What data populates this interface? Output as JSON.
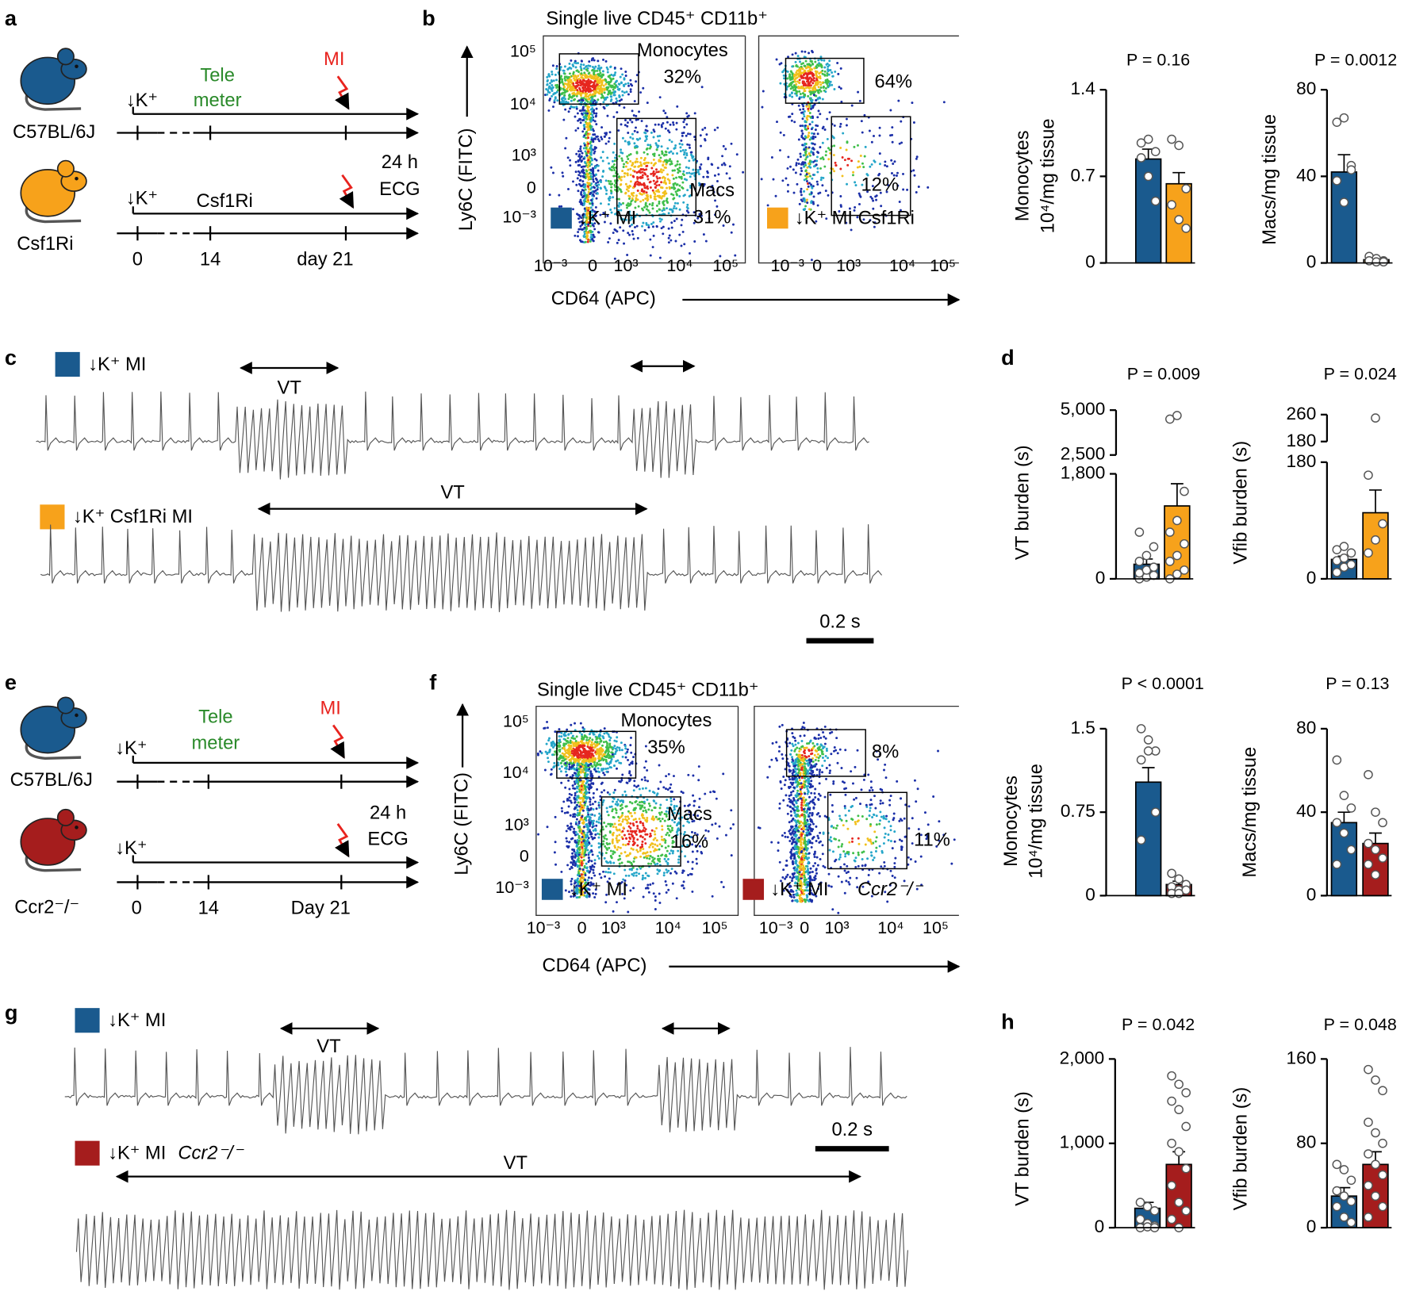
{
  "figure": {
    "a": {
      "label": "a",
      "mouse1": "C57BL/6J",
      "mouse2": "Csf1Ri",
      "k1": "↓K⁺",
      "tele": "Tele",
      "meter": "meter",
      "mi": "MI",
      "k2": "↓K⁺",
      "csf": "Csf1Ri",
      "ecg1": "24 h",
      "ecg2": "ECG",
      "t0": "0",
      "t14": "14",
      "t21": "day 21"
    },
    "b": {
      "label": "b",
      "title": "Single live CD45⁺ CD11b⁺",
      "ylabel": "Ly6C (FITC)",
      "xlabel": "CD64 (APC)",
      "yticks": [
        "10⁵",
        "10⁴",
        "10³",
        "0",
        "10⁻³"
      ],
      "xticks": [
        "10⁻³",
        "0",
        "10³",
        "10⁴",
        "10⁵"
      ],
      "xticks_right": [
        "10⁻³",
        "0",
        "10³",
        "10⁴",
        "10⁵"
      ],
      "mono": "Monocytes",
      "p1": "32%",
      "macs": "Macs",
      "p2": "31%",
      "p3": "64%",
      "p4": "12%",
      "legend1": "↓K⁺ MI",
      "legend2": "↓K⁺ MI Csf1Ri"
    },
    "c": {
      "label": "c",
      "legend1": "↓K⁺ MI",
      "vt1": "VT",
      "legend2": "↓K⁺ Csf1Ri MI",
      "vt2": "VT",
      "scale": "0.2 s"
    },
    "d": {
      "label": "d"
    },
    "e": {
      "label": "e",
      "mouse1": "C57BL/6J",
      "mouse2": "Ccr2⁻/⁻",
      "k1": "↓K⁺",
      "tele": "Tele",
      "meter": "meter",
      "mi": "MI",
      "k2": "↓K⁺",
      "ecg1": "24 h",
      "ecg2": "ECG",
      "t0": "0",
      "t14": "14",
      "t21": "Day 21"
    },
    "f": {
      "label": "f",
      "title": "Single live CD45⁺ CD11b⁺",
      "ylabel": "Ly6C (FITC)",
      "xlabel": "CD64 (APC)",
      "yticks": [
        "10⁵",
        "10⁴",
        "10³",
        "0",
        "10⁻³"
      ],
      "xticks": [
        "10⁻³",
        "0",
        "10³",
        "10⁴",
        "10⁵"
      ],
      "xticks_right": [
        "10⁻³",
        "0",
        "10³",
        "10⁴",
        "10⁵"
      ],
      "mono": "Monocytes",
      "p1": "35%",
      "macs": "Macs",
      "p2": "16%",
      "p3": "8%",
      "p4": "11%",
      "legend1": "↓K⁺ MI",
      "legend2": "↓K⁺ MI",
      "legend2_italic": "Ccr2⁻/⁻"
    },
    "g": {
      "label": "g",
      "legend1": "↓K⁺ MI",
      "vt1": "VT",
      "legend2": "↓K⁺ MI",
      "legend2_italic": "Ccr2⁻/⁻",
      "vt2": "VT",
      "scale": "0.2 s"
    },
    "h": {
      "label": "h"
    }
  },
  "chart_data": [
    {
      "type": "bar",
      "title": "P = 0.16",
      "ylabel": [
        "Monocytes",
        "10⁴/mg tissue"
      ],
      "categories": [
        null,
        null
      ],
      "colors": [
        "#1a5a8e",
        "#f7a21b"
      ],
      "values": [
        0.84,
        0.64
      ],
      "errors": [
        0.08,
        0.09
      ],
      "points": [
        [
          0.97,
          1.0,
          0.9,
          0.85,
          0.7,
          0.5
        ],
        [
          1.0,
          0.95,
          0.6,
          0.47,
          0.35,
          0.28
        ]
      ],
      "ylim": [
        0,
        1.4
      ],
      "yticks": [
        0,
        0.7,
        1.4
      ]
    },
    {
      "type": "bar",
      "title": "P = 0.0012",
      "ylabel": [
        "Macs/mg tissue"
      ],
      "categories": [
        null,
        null
      ],
      "colors": [
        "#1a5a8e",
        "#f7a21b"
      ],
      "values": [
        42,
        1.5
      ],
      "errors": [
        8,
        0.5
      ],
      "points": [
        [
          65,
          67,
          45,
          38,
          28,
          43
        ],
        [
          3,
          2,
          1,
          1,
          0.5,
          0.5
        ]
      ],
      "ylim": [
        0,
        80
      ],
      "yticks": [
        0,
        40,
        80
      ]
    },
    {
      "type": "bar",
      "title": "P = 0.009",
      "ylabel": [
        "VT burden (s)"
      ],
      "categories": [
        null,
        null
      ],
      "colors": [
        "#1a5a8e",
        "#f7a21b"
      ],
      "values": [
        250,
        1250
      ],
      "errors": [
        90,
        380
      ],
      "points": [
        [
          0,
          30,
          60,
          100,
          150,
          200,
          300,
          400,
          550,
          800
        ],
        [
          0,
          80,
          150,
          300,
          400,
          600,
          800,
          1000,
          1500,
          4500,
          4700
        ]
      ],
      "ylim": [
        0,
        1800
      ],
      "yticks": [
        0,
        {
          "value": 1800,
          "label": "1,800"
        }
      ],
      "ylim_upper": [
        2500,
        5000
      ],
      "yticks_upper": [
        {
          "value": 2500,
          "label": "2,500"
        },
        {
          "value": 5000,
          "label": "5,000"
        }
      ]
    },
    {
      "type": "bar",
      "title": "P = 0.024",
      "ylabel": [
        "Vfib burden (s)"
      ],
      "categories": [
        null,
        null
      ],
      "colors": [
        "#1a5a8e",
        "#f7a21b"
      ],
      "values": [
        30,
        102
      ],
      "errors": [
        5,
        35
      ],
      "points": [
        [
          10,
          18,
          22,
          28,
          32,
          40,
          45,
          50
        ],
        [
          40,
          60,
          85,
          160,
          250
        ]
      ],
      "ylim": [
        0,
        180
      ],
      "yticks": [
        0,
        180
      ],
      "ylim_upper": [
        180,
        260
      ],
      "yticks_upper": [
        180,
        260
      ]
    },
    {
      "type": "bar",
      "title": "P < 0.0001",
      "ylabel": [
        "Monocytes",
        "10⁴/mg tissue"
      ],
      "categories": [
        null,
        null
      ],
      "colors": [
        "#1a5a8e",
        "#a51d1d"
      ],
      "values": [
        1.02,
        0.1
      ],
      "errors": [
        0.13,
        0.03
      ],
      "points": [
        [
          1.5,
          1.4,
          1.3,
          1.22,
          1.3,
          0.75,
          0.5
        ],
        [
          0.2,
          0.15,
          0.1,
          0.08,
          0.05,
          0.05,
          0.02,
          0.02
        ]
      ],
      "ylim": [
        0,
        1.5
      ],
      "yticks": [
        0,
        0.75,
        1.5
      ]
    },
    {
      "type": "bar",
      "title": "P = 0.13",
      "ylabel": [
        "Macs/mg tissue"
      ],
      "categories": [
        null,
        null
      ],
      "colors": [
        "#1a5a8e",
        "#a51d1d"
      ],
      "values": [
        35,
        25
      ],
      "errors": [
        5,
        5
      ],
      "points": [
        [
          65,
          48,
          42,
          35,
          30,
          22,
          15
        ],
        [
          58,
          40,
          35,
          25,
          22,
          18,
          15,
          10
        ]
      ],
      "ylim": [
        0,
        80
      ],
      "yticks": [
        0,
        40,
        80
      ]
    },
    {
      "type": "bar",
      "title": "P = 0.042",
      "ylabel": [
        "VT burden (s)"
      ],
      "categories": [
        null,
        null
      ],
      "colors": [
        "#1a5a8e",
        "#a51d1d"
      ],
      "values": [
        230,
        750
      ],
      "errors": [
        70,
        150
      ],
      "points": [
        [
          300,
          250,
          200,
          100,
          50,
          20,
          0,
          10,
          0
        ],
        [
          1800,
          1700,
          1600,
          1500,
          1400,
          1200,
          1000,
          900,
          700,
          500,
          300,
          200,
          100,
          0
        ]
      ],
      "ylim": [
        0,
        2000
      ],
      "yticks": [
        0,
        {
          "value": 1000,
          "label": "1,000"
        },
        {
          "value": 2000,
          "label": "2,000"
        }
      ]
    },
    {
      "type": "bar",
      "title": "P = 0.048",
      "ylabel": [
        "Vfib burden (s)"
      ],
      "categories": [
        null,
        null
      ],
      "colors": [
        "#1a5a8e",
        "#a51d1d"
      ],
      "values": [
        30,
        60
      ],
      "errors": [
        8,
        12
      ],
      "points": [
        [
          60,
          55,
          45,
          35,
          30,
          25,
          20,
          10,
          5
        ],
        [
          150,
          140,
          130,
          100,
          90,
          80,
          70,
          60,
          50,
          40,
          30,
          20,
          10
        ]
      ],
      "ylim": [
        0,
        160
      ],
      "yticks": [
        0,
        80,
        160
      ]
    }
  ]
}
